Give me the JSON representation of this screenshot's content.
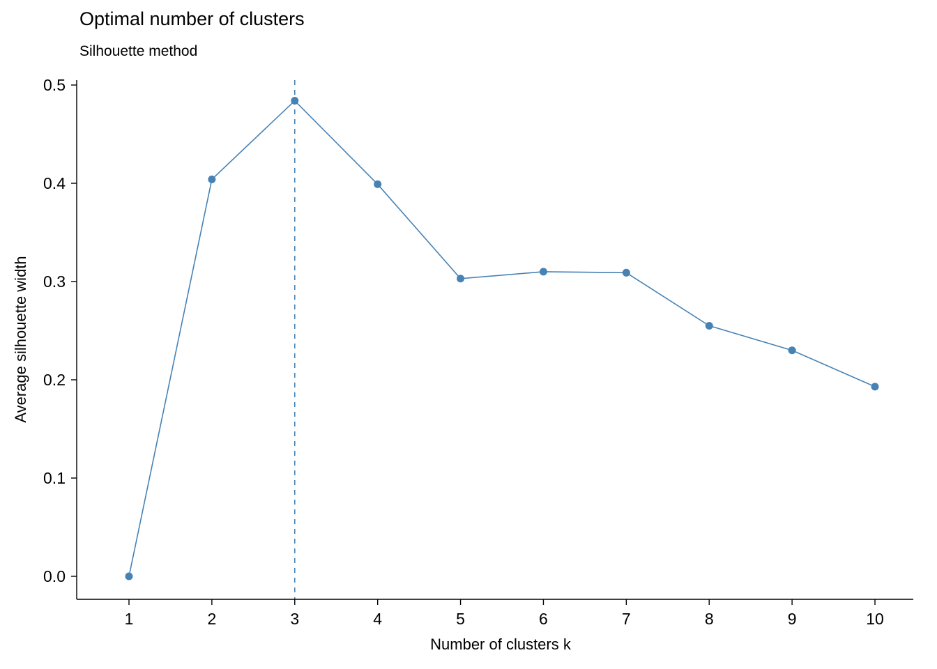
{
  "chart_data": {
    "type": "line",
    "title": "Optimal number of clusters",
    "subtitle": "Silhouette method",
    "xlabel": "Number of clusters k",
    "ylabel": "Average silhouette width",
    "x": [
      1,
      2,
      3,
      4,
      5,
      6,
      7,
      8,
      9,
      10
    ],
    "y": [
      0.0,
      0.404,
      0.484,
      0.399,
      0.303,
      0.31,
      0.309,
      0.255,
      0.23,
      0.193
    ],
    "xticks": [
      1,
      2,
      3,
      4,
      5,
      6,
      7,
      8,
      9,
      10
    ],
    "yticks": [
      0.0,
      0.1,
      0.2,
      0.3,
      0.4,
      0.5
    ],
    "xlim": [
      1,
      10
    ],
    "ylim": [
      0.0,
      0.5
    ],
    "vline_x": 3,
    "vline_style": "dashed",
    "line_color": "#4682B4",
    "point_color": "#4682B4",
    "axis_color": "#000000",
    "grid": false,
    "legend_position": "none"
  }
}
